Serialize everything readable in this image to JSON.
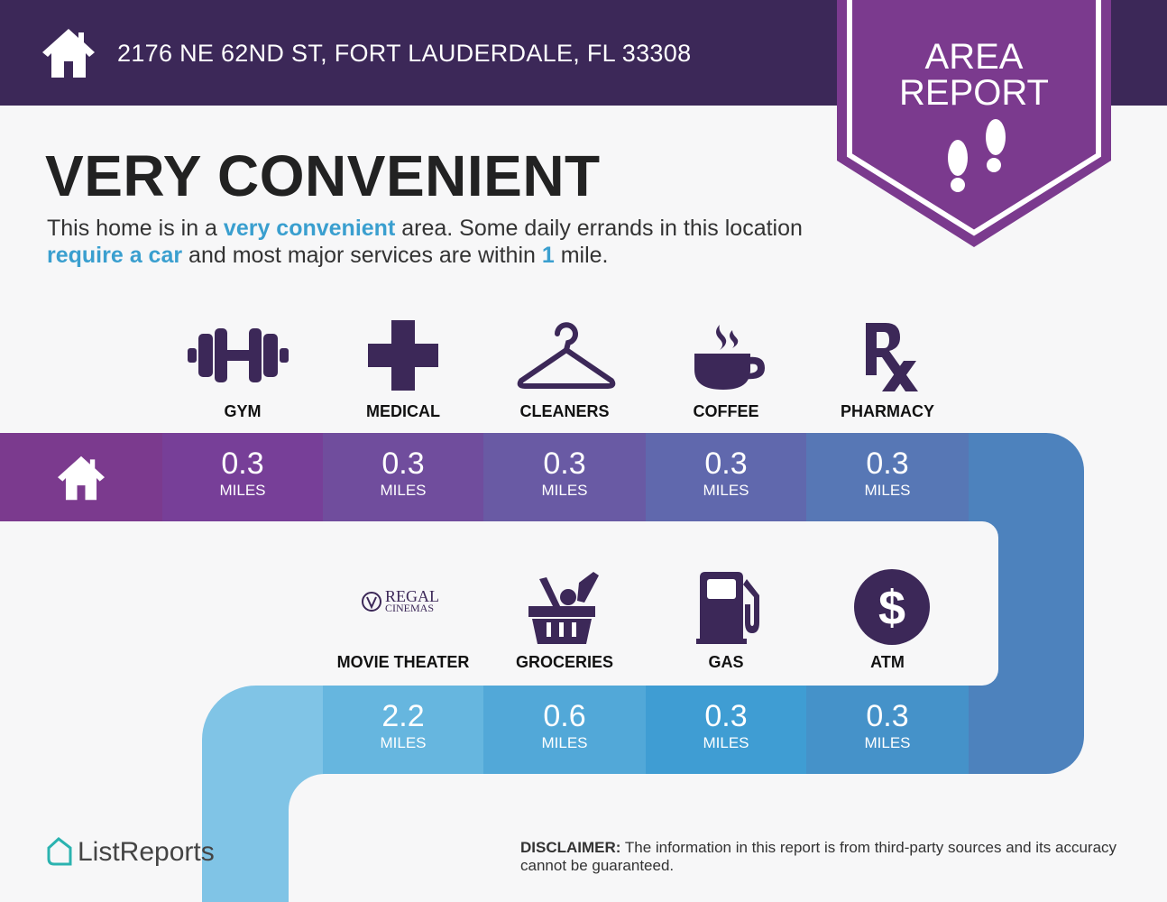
{
  "header": {
    "address": "2176 NE 62ND ST, FORT LAUDERDALE, FL 33308",
    "badge_line1": "AREA",
    "badge_line2": "REPORT"
  },
  "main": {
    "title": "VERY CONVENIENT",
    "desc": {
      "p1": "This home is in a ",
      "h1": "very convenient",
      "p2": " area. Some daily errands in this location ",
      "h2": "require a car",
      "p3": " and most major services are within ",
      "h3": "1",
      "p4": " mile."
    }
  },
  "unit": "MILES",
  "top_row": [
    {
      "label": "GYM",
      "value": "0.3",
      "icon": "dumbbell-icon",
      "color": "#773f98"
    },
    {
      "label": "MEDICAL",
      "value": "0.3",
      "icon": "medical-cross-icon",
      "color": "#704d9d"
    },
    {
      "label": "CLEANERS",
      "value": "0.3",
      "icon": "hanger-icon",
      "color": "#695aa4"
    },
    {
      "label": "COFFEE",
      "value": "0.3",
      "icon": "coffee-cup-icon",
      "color": "#6068ad"
    },
    {
      "label": "PHARMACY",
      "value": "0.3",
      "icon": "rx-icon",
      "color": "#5777b5"
    }
  ],
  "bottom_row": [
    {
      "label": "MOVIE THEATER",
      "value": "2.2",
      "icon": "regal-cinemas-logo",
      "logo_text1": "REGAL",
      "logo_text2": "CINEMAS",
      "color": "#66b6df"
    },
    {
      "label": "GROCERIES",
      "value": "0.6",
      "icon": "grocery-basket-icon",
      "color": "#52a8d8"
    },
    {
      "label": "GAS",
      "value": "0.3",
      "icon": "gas-pump-icon",
      "color": "#3f9dd3"
    },
    {
      "label": "ATM",
      "value": "0.3",
      "icon": "dollar-icon",
      "color": "#4592c9"
    }
  ],
  "colors": {
    "header": "#3c2858",
    "badge": "#7b3a8e",
    "home_cell": "#7b3a8e",
    "right_bend": "#4d82bd",
    "left_bend": "#80c4e6",
    "icon": "#3c2858",
    "highlight": "#3a9fcf"
  },
  "footer": {
    "brand": "ListReports",
    "disclaimer_bold": "DISCLAIMER:",
    "disclaimer_text": " The information in this report is from third-party sources and its accuracy cannot be guaranteed."
  }
}
